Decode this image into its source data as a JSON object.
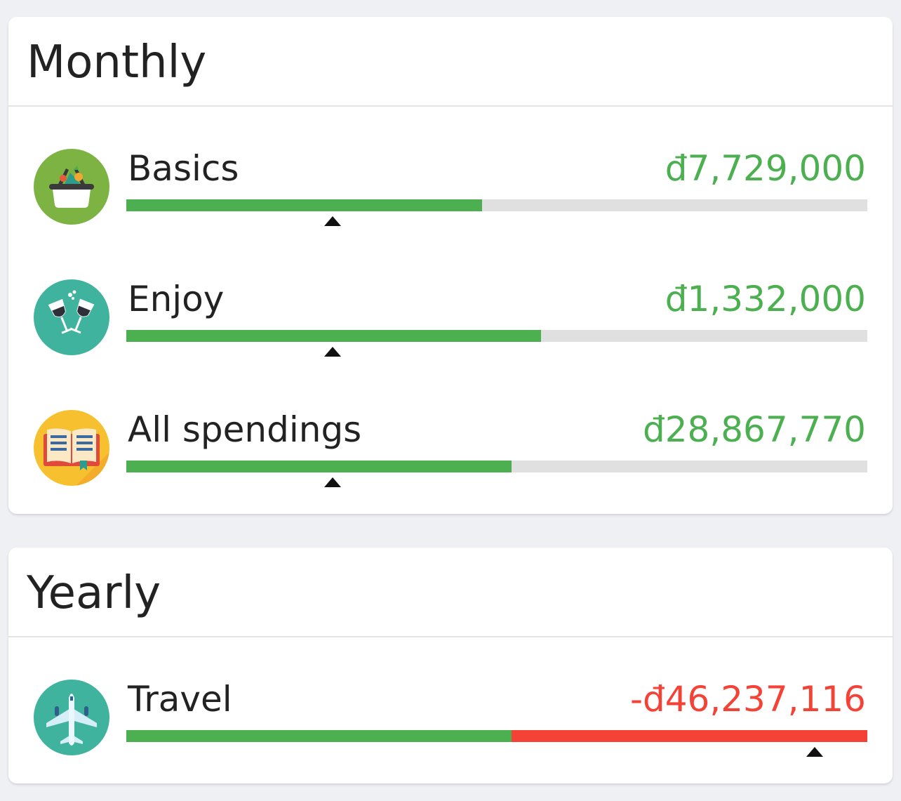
{
  "monthly": {
    "title": "Monthly",
    "items": [
      {
        "label": "Basics",
        "amount": "đ7,729,000",
        "progress": 0.48,
        "marker": 0.278,
        "icon": "basket-icon",
        "icon_bg": "#7cb342"
      },
      {
        "label": "Enjoy",
        "amount": "đ1,332,000",
        "progress": 0.56,
        "marker": 0.278,
        "icon": "wine-glasses-icon",
        "icon_bg": "#3fb39d"
      },
      {
        "label": "All spendings",
        "amount": "đ28,867,770",
        "progress": 0.52,
        "marker": 0.278,
        "icon": "book-icon",
        "icon_bg": "#f7c02e"
      }
    ]
  },
  "yearly": {
    "title": "Yearly",
    "items": [
      {
        "label": "Travel",
        "amount": "-đ46,237,116",
        "progress": 0.52,
        "over_budget": 0.48,
        "marker": 0.929,
        "icon": "airplane-icon",
        "icon_bg": "#3fb39d"
      }
    ]
  },
  "colors": {
    "positive": "#4caf50",
    "negative": "#f44336",
    "track": "#e0e0e0",
    "background": "#eff0f4"
  }
}
